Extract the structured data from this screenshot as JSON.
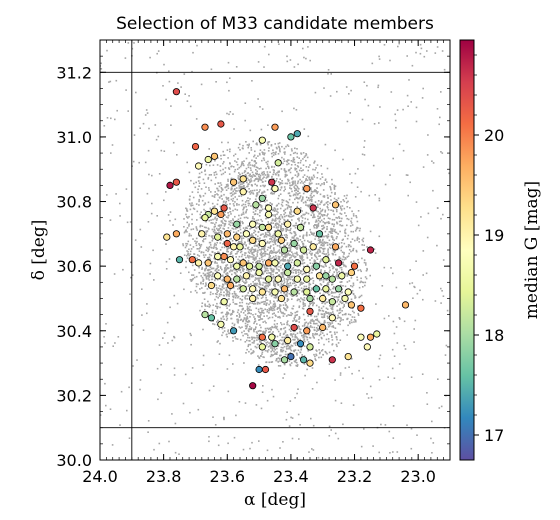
{
  "chart_data": {
    "type": "scatter",
    "title": "Selection of M33 candidate members",
    "xlabel": "α [deg]",
    "ylabel": "δ [deg]",
    "xlim": [
      24.0,
      22.9
    ],
    "ylim": [
      30.0,
      31.3
    ],
    "x_inverted": true,
    "xticks": [
      24.0,
      23.8,
      23.6,
      23.4,
      23.2,
      23.0
    ],
    "xtick_labels": [
      "24.0",
      "23.8",
      "23.6",
      "23.4",
      "23.2",
      "23.0"
    ],
    "yticks": [
      30.0,
      30.2,
      30.4,
      30.6,
      30.8,
      31.0,
      31.2
    ],
    "ytick_labels": [
      "30.0",
      "30.2",
      "30.4",
      "30.6",
      "30.8",
      "31.0",
      "31.2"
    ],
    "selection_box": {
      "ra": [
        23.9,
        22.9
      ],
      "dec": [
        30.1,
        31.2
      ]
    },
    "colorbar": {
      "label": "median G [mag]",
      "range": [
        16.75,
        20.95
      ],
      "colormap": "Spectral_r",
      "ticks": [
        17,
        18,
        19,
        20
      ],
      "tick_labels": [
        "17",
        "18",
        "19",
        "20"
      ]
    },
    "background_color": "#a6a6a6",
    "series": [
      {
        "points": [
          [
            23.76,
            31.14,
            20.4
          ],
          [
            23.67,
            31.03,
            19.9
          ],
          [
            23.62,
            31.04,
            20.3
          ],
          [
            23.45,
            31.03,
            19.8
          ],
          [
            23.4,
            31.0,
            17.6
          ],
          [
            23.38,
            31.01,
            17.4
          ],
          [
            23.49,
            30.99,
            18.7
          ],
          [
            23.7,
            30.97,
            20.2
          ],
          [
            23.66,
            30.93,
            18.6
          ],
          [
            23.64,
            30.94,
            19.5
          ],
          [
            23.69,
            30.91,
            18.9
          ],
          [
            23.44,
            30.92,
            18.3
          ],
          [
            23.46,
            30.86,
            20.6
          ],
          [
            23.55,
            30.87,
            19.2
          ],
          [
            23.58,
            30.86,
            19.5
          ],
          [
            23.78,
            30.85,
            20.8
          ],
          [
            23.76,
            30.86,
            20.3
          ],
          [
            23.35,
            30.84,
            19.8
          ],
          [
            23.45,
            30.84,
            18.8
          ],
          [
            23.55,
            30.83,
            19.0
          ],
          [
            23.49,
            30.81,
            17.9
          ],
          [
            23.51,
            30.79,
            18.1
          ],
          [
            23.47,
            30.78,
            18.8
          ],
          [
            23.61,
            30.78,
            20.3
          ],
          [
            23.62,
            30.76,
            19.8
          ],
          [
            23.64,
            30.77,
            19.2
          ],
          [
            23.66,
            30.76,
            18.2
          ],
          [
            23.67,
            30.75,
            18.5
          ],
          [
            23.47,
            30.76,
            18.7
          ],
          [
            23.38,
            30.77,
            19.3
          ],
          [
            23.41,
            30.73,
            19.0
          ],
          [
            23.33,
            30.78,
            20.6
          ],
          [
            23.26,
            30.79,
            19.5
          ],
          [
            23.57,
            30.73,
            17.9
          ],
          [
            23.52,
            30.73,
            18.8
          ],
          [
            23.49,
            30.72,
            18.2
          ],
          [
            23.47,
            30.72,
            19.3
          ],
          [
            23.44,
            30.7,
            18.6
          ],
          [
            23.37,
            30.72,
            18.2
          ],
          [
            23.31,
            30.7,
            17.6
          ],
          [
            23.79,
            30.69,
            19.2
          ],
          [
            23.76,
            30.7,
            19.7
          ],
          [
            23.68,
            30.7,
            19.0
          ],
          [
            23.63,
            30.69,
            18.4
          ],
          [
            23.6,
            30.7,
            19.6
          ],
          [
            23.57,
            30.69,
            19.4
          ],
          [
            23.54,
            30.7,
            18.8
          ],
          [
            23.52,
            30.68,
            19.3
          ],
          [
            23.6,
            30.67,
            20.2
          ],
          [
            23.58,
            30.66,
            19.0
          ],
          [
            23.56,
            30.66,
            18.5
          ],
          [
            23.49,
            30.67,
            18.9
          ],
          [
            23.43,
            30.68,
            19.4
          ],
          [
            23.42,
            30.65,
            18.1
          ],
          [
            23.39,
            30.67,
            17.9
          ],
          [
            23.36,
            30.65,
            18.3
          ],
          [
            23.33,
            30.66,
            19.1
          ],
          [
            23.26,
            30.66,
            19.7
          ],
          [
            23.15,
            30.65,
            20.7
          ],
          [
            23.75,
            30.62,
            17.5
          ],
          [
            23.71,
            30.62,
            20.1
          ],
          [
            23.69,
            30.61,
            19.0
          ],
          [
            23.66,
            30.61,
            19.5
          ],
          [
            23.63,
            30.63,
            18.7
          ],
          [
            23.61,
            30.63,
            19.9
          ],
          [
            23.59,
            30.62,
            18.9
          ],
          [
            23.57,
            30.6,
            18.6
          ],
          [
            23.55,
            30.61,
            19.5
          ],
          [
            23.53,
            30.6,
            18.4
          ],
          [
            23.5,
            30.6,
            18.2
          ],
          [
            23.47,
            30.61,
            19.7
          ],
          [
            23.45,
            30.61,
            18.7
          ],
          [
            23.41,
            30.6,
            17.4
          ],
          [
            23.38,
            30.61,
            18.3
          ],
          [
            23.35,
            30.59,
            18.9
          ],
          [
            23.32,
            30.6,
            17.8
          ],
          [
            23.29,
            30.62,
            18.4
          ],
          [
            23.25,
            30.61,
            20.7
          ],
          [
            23.2,
            30.6,
            20.1
          ],
          [
            23.63,
            30.57,
            18.8
          ],
          [
            23.6,
            30.56,
            19.6
          ],
          [
            23.57,
            30.56,
            18.1
          ],
          [
            23.54,
            30.57,
            19.0
          ],
          [
            23.5,
            30.58,
            18.6
          ],
          [
            23.47,
            30.56,
            18.4
          ],
          [
            23.44,
            30.56,
            18.9
          ],
          [
            23.41,
            30.58,
            18.2
          ],
          [
            23.38,
            30.56,
            18.7
          ],
          [
            23.35,
            30.56,
            18.5
          ],
          [
            23.31,
            30.57,
            19.2
          ],
          [
            23.29,
            30.57,
            17.9
          ],
          [
            23.27,
            30.56,
            18.1
          ],
          [
            23.24,
            30.57,
            18.6
          ],
          [
            23.21,
            30.58,
            19.4
          ],
          [
            23.65,
            30.54,
            19.3
          ],
          [
            23.59,
            30.54,
            19.7
          ],
          [
            23.55,
            30.53,
            18.3
          ],
          [
            23.52,
            30.53,
            18.9
          ],
          [
            23.49,
            30.52,
            19.2
          ],
          [
            23.45,
            30.52,
            18.7
          ],
          [
            23.42,
            30.53,
            19.6
          ],
          [
            23.39,
            30.52,
            18.1
          ],
          [
            23.35,
            30.52,
            18.4
          ],
          [
            23.32,
            30.53,
            17.6
          ],
          [
            23.29,
            30.53,
            18.5
          ],
          [
            23.25,
            30.53,
            17.9
          ],
          [
            23.22,
            30.52,
            18.8
          ],
          [
            23.61,
            30.49,
            18.6
          ],
          [
            23.52,
            30.5,
            19.0
          ],
          [
            23.43,
            30.5,
            19.2
          ],
          [
            23.34,
            30.5,
            18.0
          ],
          [
            23.3,
            30.5,
            19.1
          ],
          [
            23.27,
            30.49,
            18.2
          ],
          [
            23.23,
            30.5,
            18.7
          ],
          [
            23.21,
            30.48,
            19.5
          ],
          [
            23.34,
            30.46,
            20.3
          ],
          [
            23.04,
            30.48,
            19.6
          ],
          [
            23.18,
            30.47,
            20.1
          ],
          [
            23.67,
            30.45,
            18.1
          ],
          [
            23.65,
            30.44,
            17.6
          ],
          [
            23.27,
            30.44,
            18.9
          ],
          [
            23.62,
            30.42,
            18.7
          ],
          [
            23.35,
            30.4,
            19.8
          ],
          [
            23.39,
            30.41,
            20.4
          ],
          [
            23.3,
            30.41,
            19.6
          ],
          [
            23.58,
            30.4,
            17.3
          ],
          [
            23.49,
            30.38,
            20.1
          ],
          [
            23.46,
            30.38,
            18.6
          ],
          [
            23.41,
            30.37,
            19.1
          ],
          [
            23.37,
            30.36,
            17.2
          ],
          [
            23.34,
            30.35,
            18.3
          ],
          [
            23.45,
            30.36,
            17.8
          ],
          [
            23.49,
            30.35,
            18.5
          ],
          [
            23.18,
            30.38,
            18.8
          ],
          [
            23.15,
            30.38,
            19.7
          ],
          [
            23.16,
            30.35,
            18.9
          ],
          [
            23.13,
            30.39,
            18.5
          ],
          [
            23.4,
            30.32,
            17.0
          ],
          [
            23.36,
            30.31,
            17.5
          ],
          [
            23.34,
            30.3,
            19.3
          ],
          [
            23.27,
            30.31,
            20.6
          ],
          [
            23.22,
            30.32,
            19.2
          ],
          [
            23.48,
            30.28,
            20.3
          ],
          [
            23.5,
            30.28,
            17.2
          ],
          [
            23.52,
            30.23,
            20.9
          ],
          [
            23.42,
            30.31,
            18.0
          ]
        ]
      }
    ]
  }
}
